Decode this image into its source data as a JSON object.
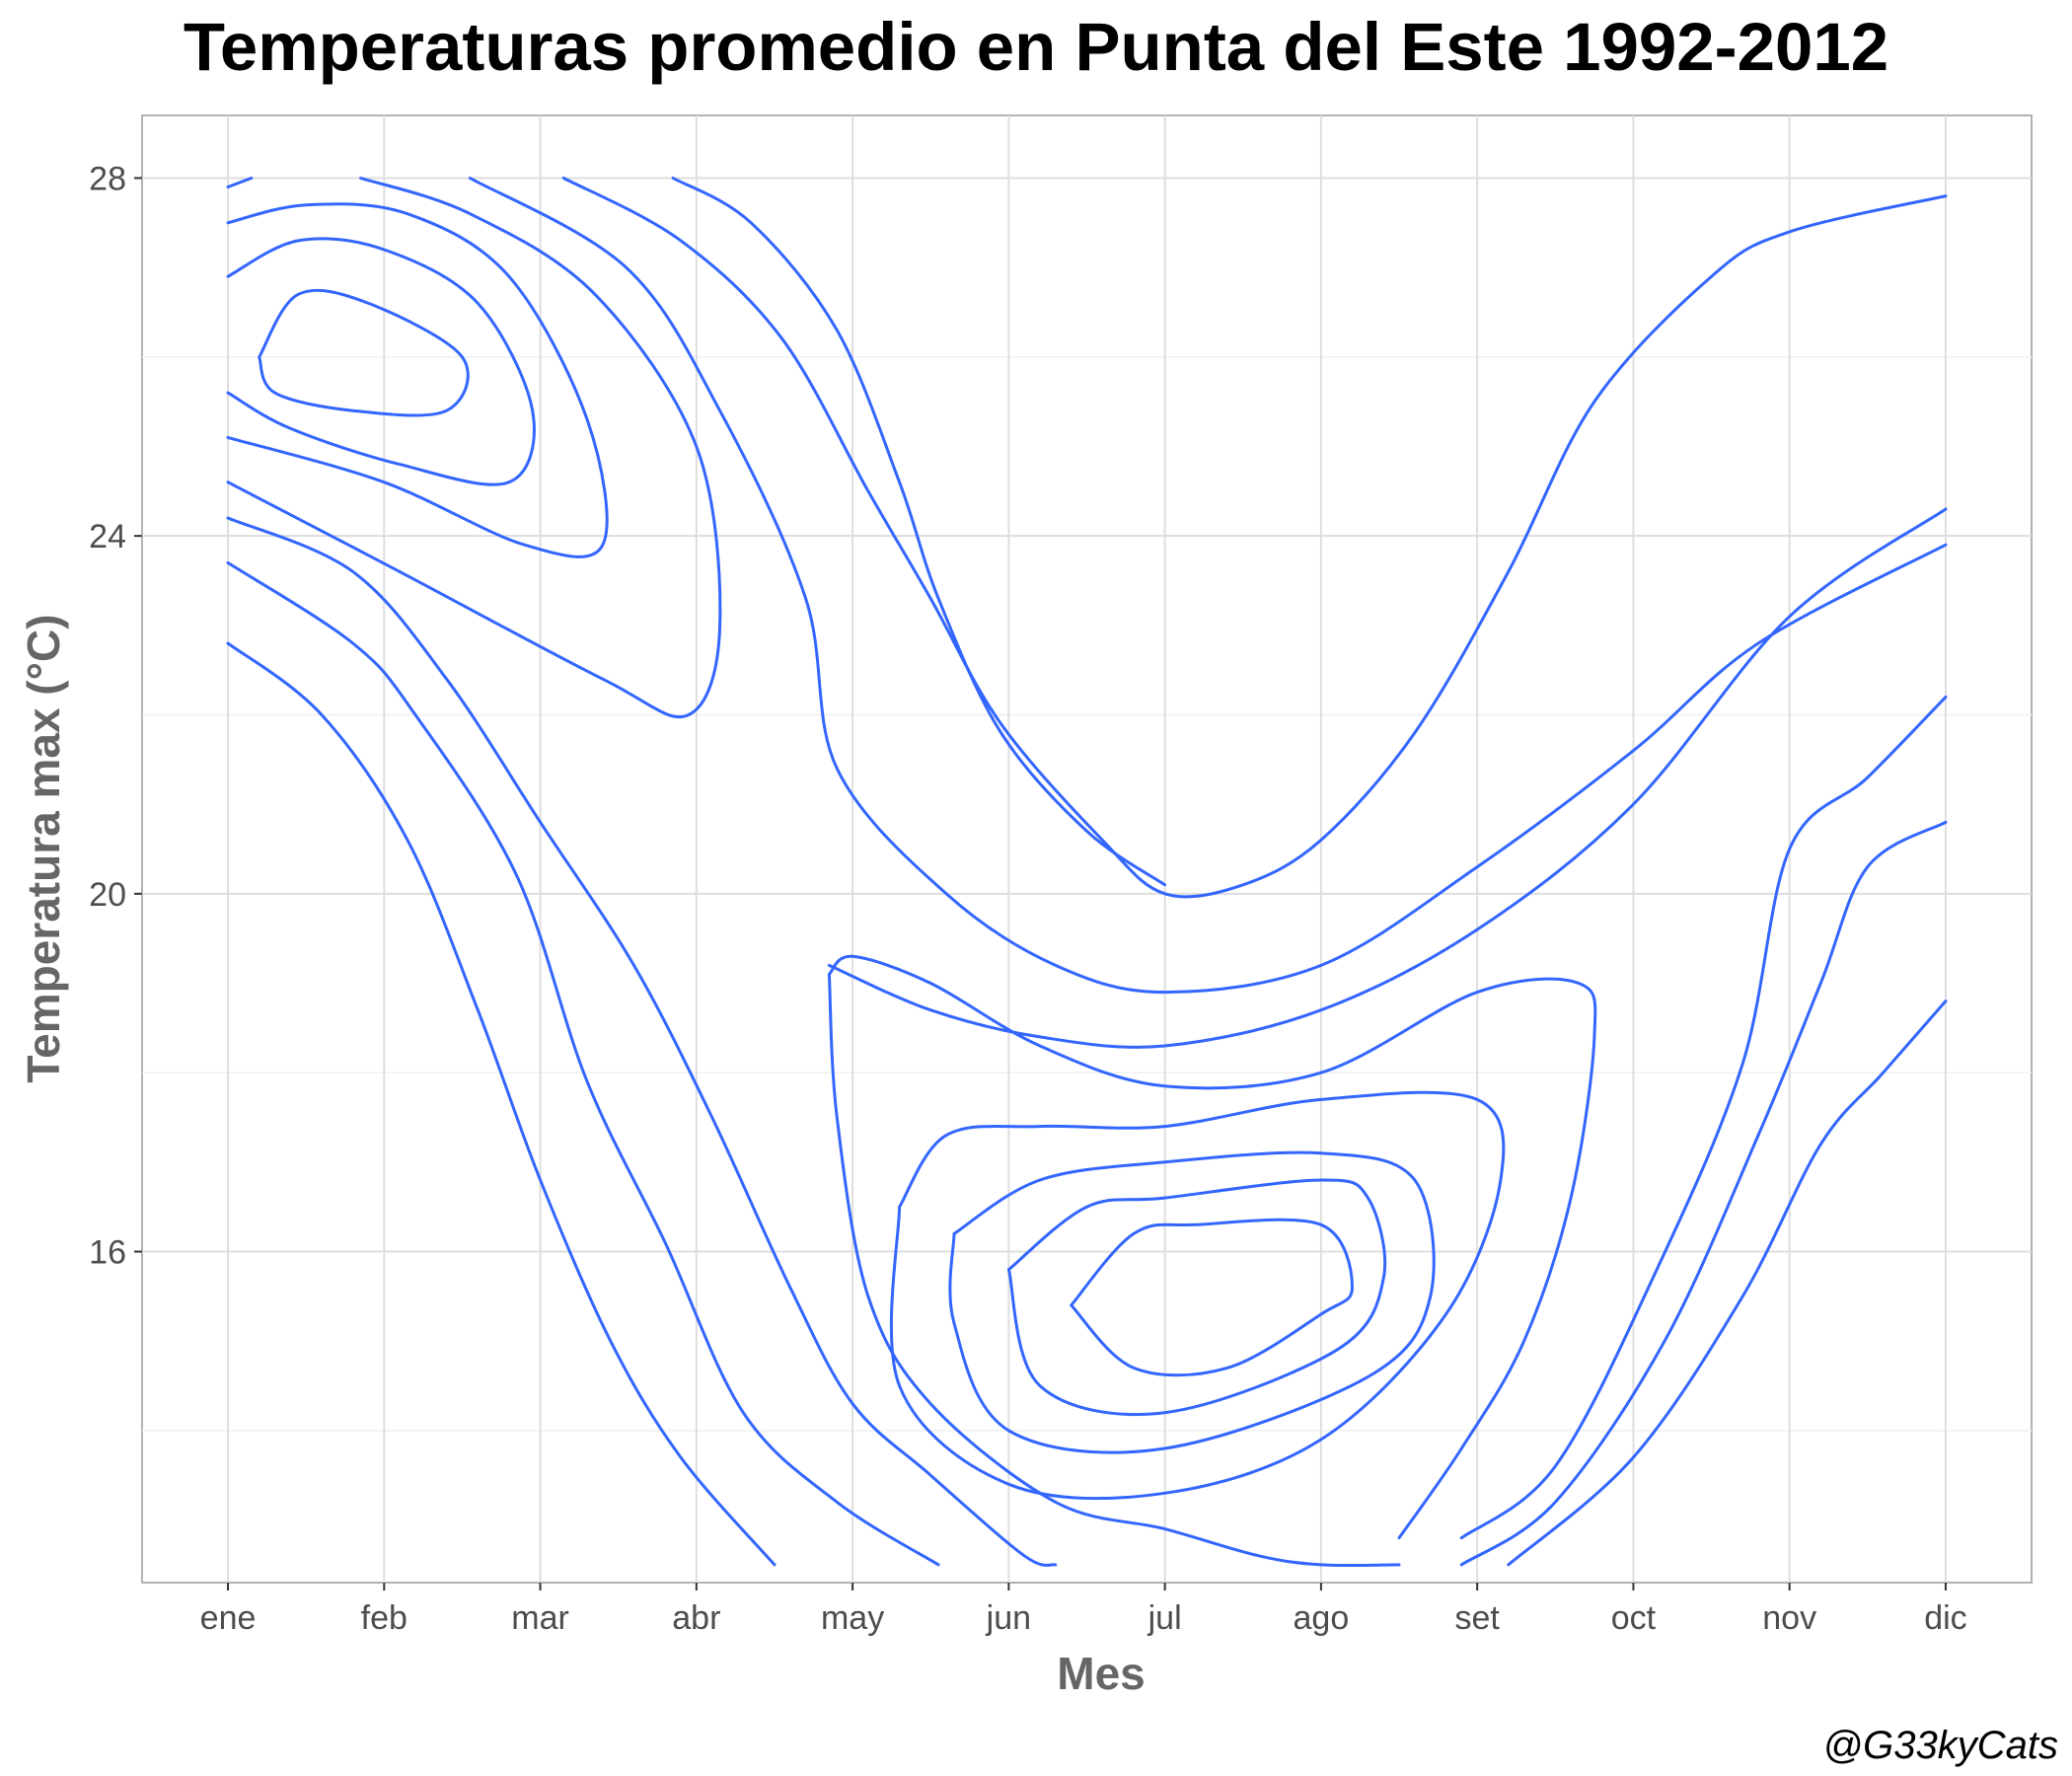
{
  "chart_data": {
    "type": "contour",
    "title": "Temperaturas promedio en Punta del Este 1992-2012",
    "xlabel": "Mes",
    "ylabel": "Temperatura max (°C)",
    "x_categories": [
      "ene",
      "feb",
      "mar",
      "abr",
      "may",
      "jun",
      "jul",
      "ago",
      "set",
      "oct",
      "nov",
      "dic"
    ],
    "y_ticks": [
      16,
      20,
      24,
      28
    ],
    "ylim": [
      12.3,
      28.7
    ],
    "xlim": [
      0.45,
      12.55
    ],
    "grid": true,
    "line_color": "#3366FF",
    "contours": [
      [
        [
          1.2,
          26.0
        ],
        [
          1.45,
          26.7
        ],
        [
          1.9,
          26.6
        ],
        [
          2.5,
          26.0
        ],
        [
          2.4,
          25.4
        ],
        [
          1.8,
          25.4
        ],
        [
          1.3,
          25.6
        ],
        [
          1.2,
          26.0
        ]
      ],
      [
        [
          1.0,
          26.9
        ],
        [
          1.45,
          27.3
        ],
        [
          2.0,
          27.2
        ],
        [
          2.6,
          26.6
        ],
        [
          2.95,
          25.4
        ],
        [
          2.8,
          24.6
        ],
        [
          2.1,
          24.8
        ],
        [
          1.4,
          25.2
        ],
        [
          1.0,
          25.6
        ]
      ],
      [
        [
          1.0,
          27.5
        ],
        [
          1.5,
          27.7
        ],
        [
          2.15,
          27.6
        ],
        [
          2.8,
          26.9
        ],
        [
          3.3,
          25.3
        ],
        [
          3.4,
          23.9
        ],
        [
          2.9,
          23.9
        ],
        [
          2.0,
          24.6
        ],
        [
          1.0,
          25.1
        ]
      ],
      [
        [
          1.0,
          27.9
        ],
        [
          1.15,
          28.0
        ]
      ],
      [
        [
          1.85,
          28.0
        ],
        [
          2.55,
          27.6
        ],
        [
          3.35,
          26.7
        ],
        [
          4.0,
          25.0
        ],
        [
          4.15,
          23.0
        ],
        [
          3.95,
          22.0
        ],
        [
          3.4,
          22.4
        ],
        [
          2.1,
          23.6
        ],
        [
          1.0,
          24.6
        ]
      ],
      [
        [
          2.55,
          28.0
        ],
        [
          3.55,
          27.0
        ],
        [
          4.15,
          25.4
        ],
        [
          4.7,
          23.3
        ],
        [
          4.9,
          21.4
        ],
        [
          5.6,
          20.0
        ],
        [
          6.3,
          19.2
        ],
        [
          7.0,
          18.9
        ],
        [
          8.0,
          19.2
        ],
        [
          9.0,
          20.3
        ],
        [
          10.0,
          21.6
        ],
        [
          10.8,
          22.8
        ],
        [
          12.0,
          23.9
        ]
      ],
      [
        [
          3.15,
          28.0
        ],
        [
          3.9,
          27.3
        ],
        [
          4.55,
          26.2
        ],
        [
          5.1,
          24.5
        ],
        [
          5.5,
          23.3
        ],
        [
          5.95,
          21.9
        ],
        [
          6.6,
          20.6
        ],
        [
          7.0,
          20.0
        ],
        [
          7.5,
          20.1
        ],
        [
          8.0,
          20.6
        ],
        [
          8.6,
          21.8
        ],
        [
          9.2,
          23.6
        ],
        [
          9.75,
          25.5
        ],
        [
          10.5,
          26.9
        ],
        [
          11.0,
          27.4
        ],
        [
          12.0,
          27.8
        ]
      ],
      [
        [
          3.85,
          28.0
        ],
        [
          4.35,
          27.5
        ],
        [
          4.9,
          26.3
        ],
        [
          5.3,
          24.6
        ],
        [
          5.55,
          23.3
        ],
        [
          5.95,
          21.8
        ],
        [
          6.5,
          20.7
        ],
        [
          7.0,
          20.1
        ]
      ],
      [
        [
          4.85,
          19.2
        ],
        [
          5.5,
          18.7
        ],
        [
          6.2,
          18.4
        ],
        [
          7.0,
          18.3
        ],
        [
          8.0,
          18.7
        ],
        [
          9.0,
          19.6
        ],
        [
          10.0,
          21.0
        ],
        [
          11.0,
          23.1
        ],
        [
          12.0,
          24.3
        ]
      ],
      [
        [
          4.85,
          19.1
        ],
        [
          5.0,
          19.3
        ],
        [
          5.5,
          19.0
        ],
        [
          6.2,
          18.3
        ],
        [
          7.0,
          17.85
        ],
        [
          8.0,
          18.0
        ],
        [
          9.0,
          18.9
        ],
        [
          9.65,
          19.0
        ],
        [
          9.75,
          18.4
        ],
        [
          9.6,
          16.6
        ],
        [
          9.3,
          15.0
        ],
        [
          8.9,
          13.8
        ],
        [
          8.5,
          12.8
        ]
      ],
      [
        [
          4.85,
          19.1
        ],
        [
          4.9,
          17.5
        ],
        [
          5.1,
          15.5
        ],
        [
          5.5,
          14.3
        ],
        [
          6.3,
          13.2
        ],
        [
          7.0,
          12.9
        ],
        [
          7.6,
          12.6
        ],
        [
          8.0,
          12.5
        ],
        [
          8.5,
          12.5
        ]
      ],
      [
        [
          5.3,
          16.5
        ],
        [
          5.6,
          17.3
        ],
        [
          6.2,
          17.4
        ],
        [
          7.0,
          17.4
        ],
        [
          8.0,
          17.7
        ],
        [
          9.0,
          17.7
        ],
        [
          9.15,
          16.8
        ],
        [
          8.8,
          15.3
        ],
        [
          8.0,
          13.9
        ],
        [
          7.0,
          13.3
        ],
        [
          6.0,
          13.4
        ],
        [
          5.3,
          14.5
        ],
        [
          5.3,
          16.5
        ]
      ],
      [
        [
          5.65,
          16.2
        ],
        [
          6.2,
          16.8
        ],
        [
          7.0,
          17.0
        ],
        [
          8.0,
          17.1
        ],
        [
          8.6,
          16.8
        ],
        [
          8.7,
          15.5
        ],
        [
          8.3,
          14.6
        ],
        [
          7.0,
          13.8
        ],
        [
          6.0,
          14.0
        ],
        [
          5.65,
          15.2
        ],
        [
          5.65,
          16.2
        ]
      ],
      [
        [
          6.0,
          15.8
        ],
        [
          6.5,
          16.5
        ],
        [
          7.0,
          16.6
        ],
        [
          8.0,
          16.8
        ],
        [
          8.3,
          16.6
        ],
        [
          8.4,
          15.7
        ],
        [
          8.1,
          14.9
        ],
        [
          7.0,
          14.2
        ],
        [
          6.2,
          14.5
        ],
        [
          6.0,
          15.8
        ]
      ],
      [
        [
          6.4,
          15.4
        ],
        [
          6.8,
          16.2
        ],
        [
          7.2,
          16.3
        ],
        [
          8.0,
          16.3
        ],
        [
          8.2,
          15.6
        ],
        [
          8.0,
          15.3
        ],
        [
          7.4,
          14.7
        ],
        [
          6.8,
          14.7
        ],
        [
          6.4,
          15.4
        ]
      ],
      [
        [
          1.0,
          24.2
        ],
        [
          1.8,
          23.6
        ],
        [
          2.4,
          22.4
        ],
        [
          3.0,
          20.8
        ],
        [
          3.6,
          19.2
        ],
        [
          4.1,
          17.5
        ],
        [
          4.6,
          15.6
        ],
        [
          5.0,
          14.3
        ],
        [
          5.5,
          13.5
        ],
        [
          6.1,
          12.6
        ],
        [
          6.3,
          12.5
        ]
      ],
      [
        [
          1.0,
          23.7
        ],
        [
          1.8,
          22.8
        ],
        [
          2.2,
          22.0
        ],
        [
          2.85,
          20.2
        ],
        [
          3.3,
          17.9
        ],
        [
          3.8,
          16.1
        ],
        [
          4.3,
          14.2
        ],
        [
          4.9,
          13.2
        ],
        [
          5.55,
          12.5
        ]
      ],
      [
        [
          1.0,
          22.8
        ],
        [
          1.6,
          22.0
        ],
        [
          2.15,
          20.6
        ],
        [
          2.6,
          18.7
        ],
        [
          3.0,
          16.8
        ],
        [
          3.45,
          15.0
        ],
        [
          3.9,
          13.7
        ],
        [
          4.5,
          12.5
        ]
      ],
      [
        [
          9.2,
          12.5
        ],
        [
          10.0,
          13.7
        ],
        [
          10.7,
          15.5
        ],
        [
          11.2,
          17.2
        ],
        [
          11.6,
          18.0
        ],
        [
          12.0,
          18.8
        ]
      ],
      [
        [
          8.9,
          12.5
        ],
        [
          9.5,
          13.2
        ],
        [
          10.2,
          15.0
        ],
        [
          10.8,
          17.3
        ],
        [
          11.2,
          19.0
        ],
        [
          11.5,
          20.3
        ],
        [
          12.0,
          20.8
        ]
      ],
      [
        [
          8.9,
          12.8
        ],
        [
          9.5,
          13.6
        ],
        [
          10.15,
          15.8
        ],
        [
          10.7,
          18.1
        ],
        [
          11.0,
          20.5
        ],
        [
          11.5,
          21.3
        ],
        [
          12.0,
          22.2
        ]
      ]
    ]
  },
  "credit": "@G33kyCats"
}
